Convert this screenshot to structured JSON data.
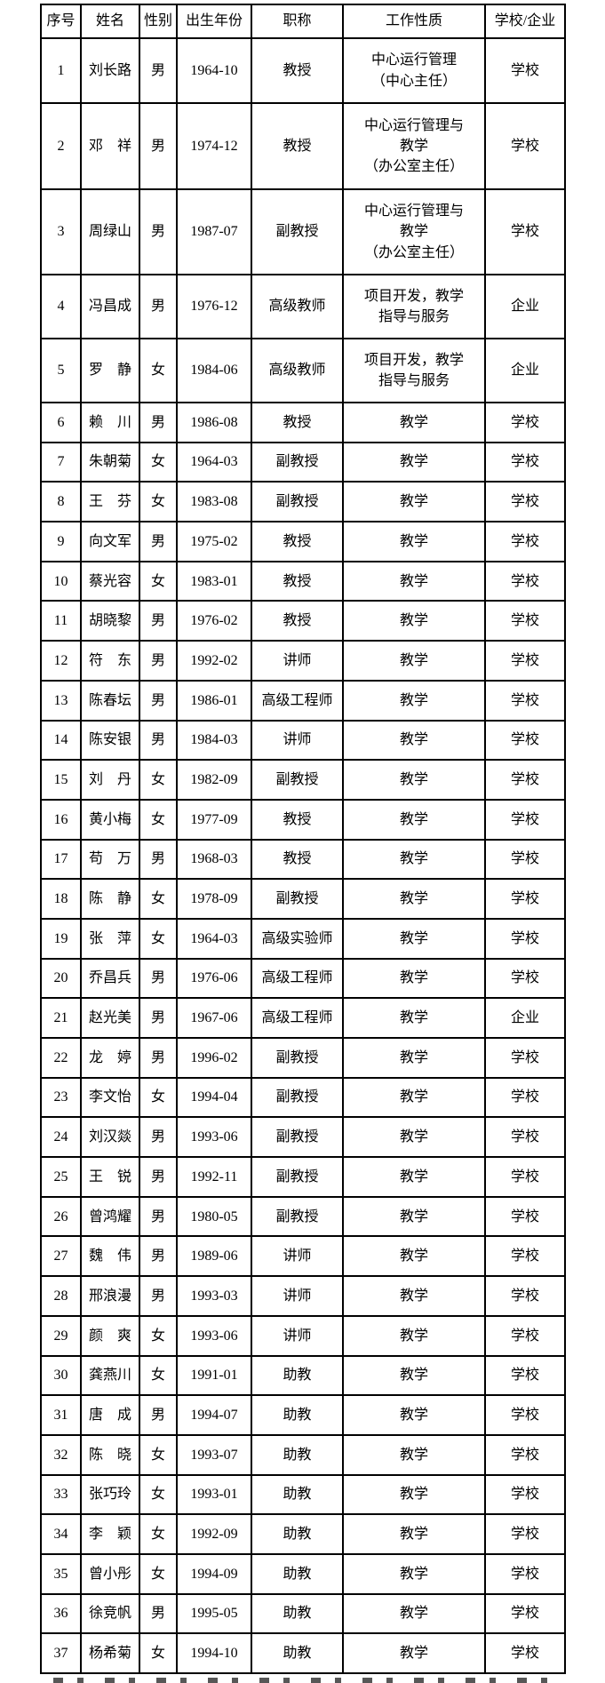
{
  "colors": {
    "border": "#000000",
    "text": "#000000",
    "background": "#ffffff"
  },
  "table": {
    "columns": [
      "序号",
      "姓名",
      "性别",
      "出生年份",
      "职称",
      "工作性质",
      "学校/企业"
    ],
    "rows": [
      [
        "1",
        "刘长路",
        "男",
        "1964-10",
        "教授",
        "中心运行管理\n（中心主任）",
        "学校"
      ],
      [
        "2",
        "邓　祥",
        "男",
        "1974-12",
        "教授",
        "中心运行管理与\n教学\n（办公室主任）",
        "学校"
      ],
      [
        "3",
        "周绿山",
        "男",
        "1987-07",
        "副教授",
        "中心运行管理与\n教学\n（办公室主任）",
        "学校"
      ],
      [
        "4",
        "冯昌成",
        "男",
        "1976-12",
        "高级教师",
        "项目开发，教学\n指导与服务",
        "企业"
      ],
      [
        "5",
        "罗　静",
        "女",
        "1984-06",
        "高级教师",
        "项目开发，教学\n指导与服务",
        "企业"
      ],
      [
        "6",
        "赖　川",
        "男",
        "1986-08",
        "教授",
        "教学",
        "学校"
      ],
      [
        "7",
        "朱朝菊",
        "女",
        "1964-03",
        "副教授",
        "教学",
        "学校"
      ],
      [
        "8",
        "王　芬",
        "女",
        "1983-08",
        "副教授",
        "教学",
        "学校"
      ],
      [
        "9",
        "向文军",
        "男",
        "1975-02",
        "教授",
        "教学",
        "学校"
      ],
      [
        "10",
        "蔡光容",
        "女",
        "1983-01",
        "教授",
        "教学",
        "学校"
      ],
      [
        "11",
        "胡晓黎",
        "男",
        "1976-02",
        "教授",
        "教学",
        "学校"
      ],
      [
        "12",
        "符　东",
        "男",
        "1992-02",
        "讲师",
        "教学",
        "学校"
      ],
      [
        "13",
        "陈春坛",
        "男",
        "1986-01",
        "高级工程师",
        "教学",
        "学校"
      ],
      [
        "14",
        "陈安银",
        "男",
        "1984-03",
        "讲师",
        "教学",
        "学校"
      ],
      [
        "15",
        "刘　丹",
        "女",
        "1982-09",
        "副教授",
        "教学",
        "学校"
      ],
      [
        "16",
        "黄小梅",
        "女",
        "1977-09",
        "教授",
        "教学",
        "学校"
      ],
      [
        "17",
        "苟　万",
        "男",
        "1968-03",
        "教授",
        "教学",
        "学校"
      ],
      [
        "18",
        "陈　静",
        "女",
        "1978-09",
        "副教授",
        "教学",
        "学校"
      ],
      [
        "19",
        "张　萍",
        "女",
        "1964-03",
        "高级实验师",
        "教学",
        "学校"
      ],
      [
        "20",
        "乔昌兵",
        "男",
        "1976-06",
        "高级工程师",
        "教学",
        "学校"
      ],
      [
        "21",
        "赵光美",
        "男",
        "1967-06",
        "高级工程师",
        "教学",
        "企业"
      ],
      [
        "22",
        "龙　婷",
        "男",
        "1996-02",
        "副教授",
        "教学",
        "学校"
      ],
      [
        "23",
        "李文怡",
        "女",
        "1994-04",
        "副教授",
        "教学",
        "学校"
      ],
      [
        "24",
        "刘汉燚",
        "男",
        "1993-06",
        "副教授",
        "教学",
        "学校"
      ],
      [
        "25",
        "王　锐",
        "男",
        "1992-11",
        "副教授",
        "教学",
        "学校"
      ],
      [
        "26",
        "曾鸿耀",
        "男",
        "1980-05",
        "副教授",
        "教学",
        "学校"
      ],
      [
        "27",
        "魏　伟",
        "男",
        "1989-06",
        "讲师",
        "教学",
        "学校"
      ],
      [
        "28",
        "邢浪漫",
        "男",
        "1993-03",
        "讲师",
        "教学",
        "学校"
      ],
      [
        "29",
        "颜　爽",
        "女",
        "1993-06",
        "讲师",
        "教学",
        "学校"
      ],
      [
        "30",
        "龚燕川",
        "女",
        "1991-01",
        "助教",
        "教学",
        "学校"
      ],
      [
        "31",
        "唐　成",
        "男",
        "1994-07",
        "助教",
        "教学",
        "学校"
      ],
      [
        "32",
        "陈　晓",
        "女",
        "1993-07",
        "助教",
        "教学",
        "学校"
      ],
      [
        "33",
        "张巧玲",
        "女",
        "1993-01",
        "助教",
        "教学",
        "学校"
      ],
      [
        "34",
        "李　颖",
        "女",
        "1992-09",
        "助教",
        "教学",
        "学校"
      ],
      [
        "35",
        "曾小彤",
        "女",
        "1994-09",
        "助教",
        "教学",
        "学校"
      ],
      [
        "36",
        "徐竞帆",
        "男",
        "1995-05",
        "助教",
        "教学",
        "学校"
      ],
      [
        "37",
        "杨希菊",
        "女",
        "1994-10",
        "助教",
        "教学",
        "学校"
      ]
    ],
    "column_keys": [
      "index",
      "name",
      "gender",
      "birth-date",
      "title",
      "work-nature",
      "school-or-enterprise"
    ]
  }
}
